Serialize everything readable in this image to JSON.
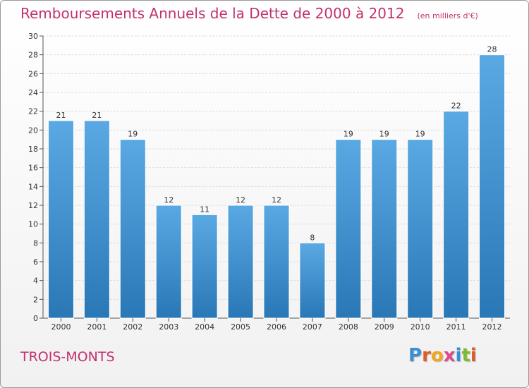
{
  "header": {
    "title": "Remboursements Annuels de la Dette de 2000 à 2012",
    "unit": "(en milliers d'€)"
  },
  "footer": {
    "commune": "TROIS-MONTS",
    "logo_text": "Proxiti",
    "logo_colors": [
      "#3a8fd4",
      "#e05a24",
      "#f0a81c",
      "#e04a8c",
      "#3a8fd4",
      "#7cbb2e",
      "#e05a24"
    ]
  },
  "colors": {
    "text_accent": "#c2306e",
    "bar_top": "#5aa9e3",
    "bar_bottom": "#2a77b6"
  },
  "chart_data": {
    "type": "bar",
    "title": "Remboursements Annuels de la Dette de 2000 à 2012",
    "subtitle": "(en milliers d'€)",
    "xlabel": "",
    "ylabel": "",
    "categories": [
      "2000",
      "2001",
      "2002",
      "2003",
      "2004",
      "2005",
      "2006",
      "2007",
      "2008",
      "2009",
      "2010",
      "2011",
      "2012"
    ],
    "values": [
      21,
      21,
      19,
      12,
      11,
      12,
      12,
      8,
      19,
      19,
      19,
      22,
      28
    ],
    "ylim": [
      0,
      30
    ],
    "yticks": [
      0,
      2,
      4,
      6,
      8,
      10,
      12,
      14,
      16,
      18,
      20,
      22,
      24,
      26,
      28,
      30
    ],
    "grid": true,
    "legend": "none"
  }
}
